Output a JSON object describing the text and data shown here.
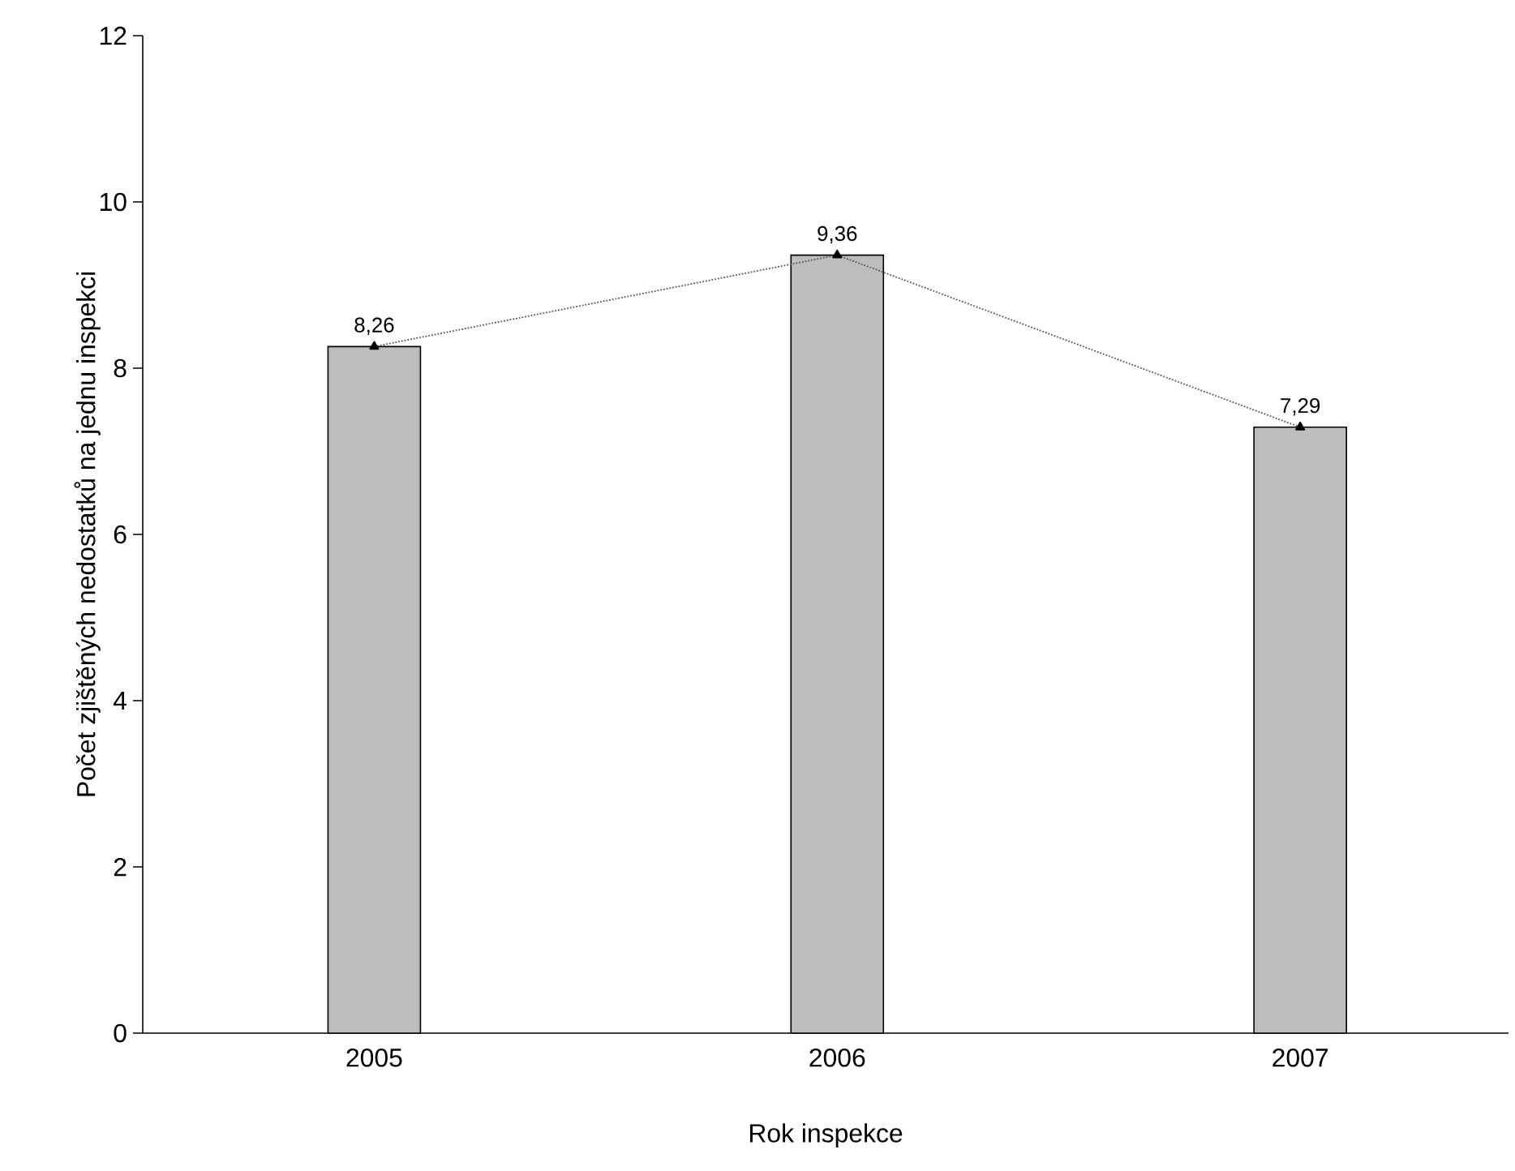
{
  "chart_data": {
    "type": "bar",
    "xlabel": "Rok inspekce",
    "ylabel": "Počet zjištěných nedostatků na jednu inspekci",
    "categories": [
      "2005",
      "2006",
      "2007"
    ],
    "series": [
      {
        "color": "#bdbdbd",
        "values": [
          8.26,
          9.36,
          7.29
        ],
        "value_labels": [
          "8,26",
          "9,36",
          "7,29"
        ]
      },
      {
        "type": "line",
        "color": "#555555",
        "values": [
          8.26,
          9.36,
          7.29
        ],
        "marker": "triangle",
        "line_style": "dotted"
      }
    ],
    "ylim": [
      0,
      12
    ],
    "yticks": [
      0,
      2,
      4,
      6,
      8,
      10,
      12
    ]
  }
}
